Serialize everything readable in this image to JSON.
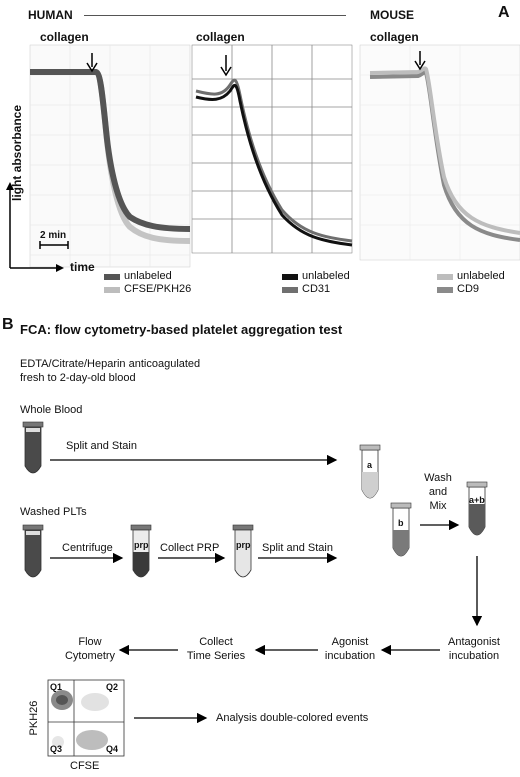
{
  "panelA": {
    "letter": "A",
    "human": "HUMAN",
    "mouse": "MOUSE",
    "collagen": [
      "collagen",
      "collagen",
      "collagen"
    ],
    "ylabel": "light absorbance",
    "xlabel": "time",
    "scalebar": "2 min",
    "legends": [
      [
        {
          "label": "unlabeled",
          "color": "#555555"
        },
        {
          "label": "CFSE/PKH26",
          "color": "#bdbdbd"
        }
      ],
      [
        {
          "label": "unlabeled",
          "color": "#111111"
        },
        {
          "label": "CD31",
          "color": "#6f6f6f"
        }
      ],
      [
        {
          "label": "unlabeled",
          "color": "#bdbdbd"
        },
        {
          "label": "CD9",
          "color": "#8a8a8a"
        }
      ]
    ]
  },
  "panelB": {
    "letter": "B",
    "title": "FCA: flow cytometry-based platelet aggregation test",
    "blood_line1": "EDTA/Citrate/Heparin anticoagulated",
    "blood_line2": "fresh to 2-day-old blood",
    "whole_blood": "Whole Blood",
    "washed_plts": "Washed PLTs",
    "split_stain_1": "Split and Stain",
    "centrifuge": "Centrifuge",
    "collect_prp": "Collect PRP",
    "split_stain_2": "Split and Stain",
    "prp": "prp",
    "tube_a": "a",
    "tube_b": "b",
    "tube_ab": "a+b",
    "wash": "Wash",
    "and": "and",
    "mix": "Mix",
    "antagonist_1": "Antagonist",
    "antagonist_2": "incubation",
    "agonist_1": "Agonist",
    "agonist_2": "incubation",
    "collect_ts_1": "Collect",
    "collect_ts_2": "Time Series",
    "flow_1": "Flow",
    "flow_2": "Cytometry",
    "analysis": "Analysis double-colored events",
    "quadrants": [
      "Q1",
      "Q2",
      "Q3",
      "Q4"
    ],
    "flow_ylabel": "PKH26",
    "flow_xlabel": "CFSE"
  }
}
